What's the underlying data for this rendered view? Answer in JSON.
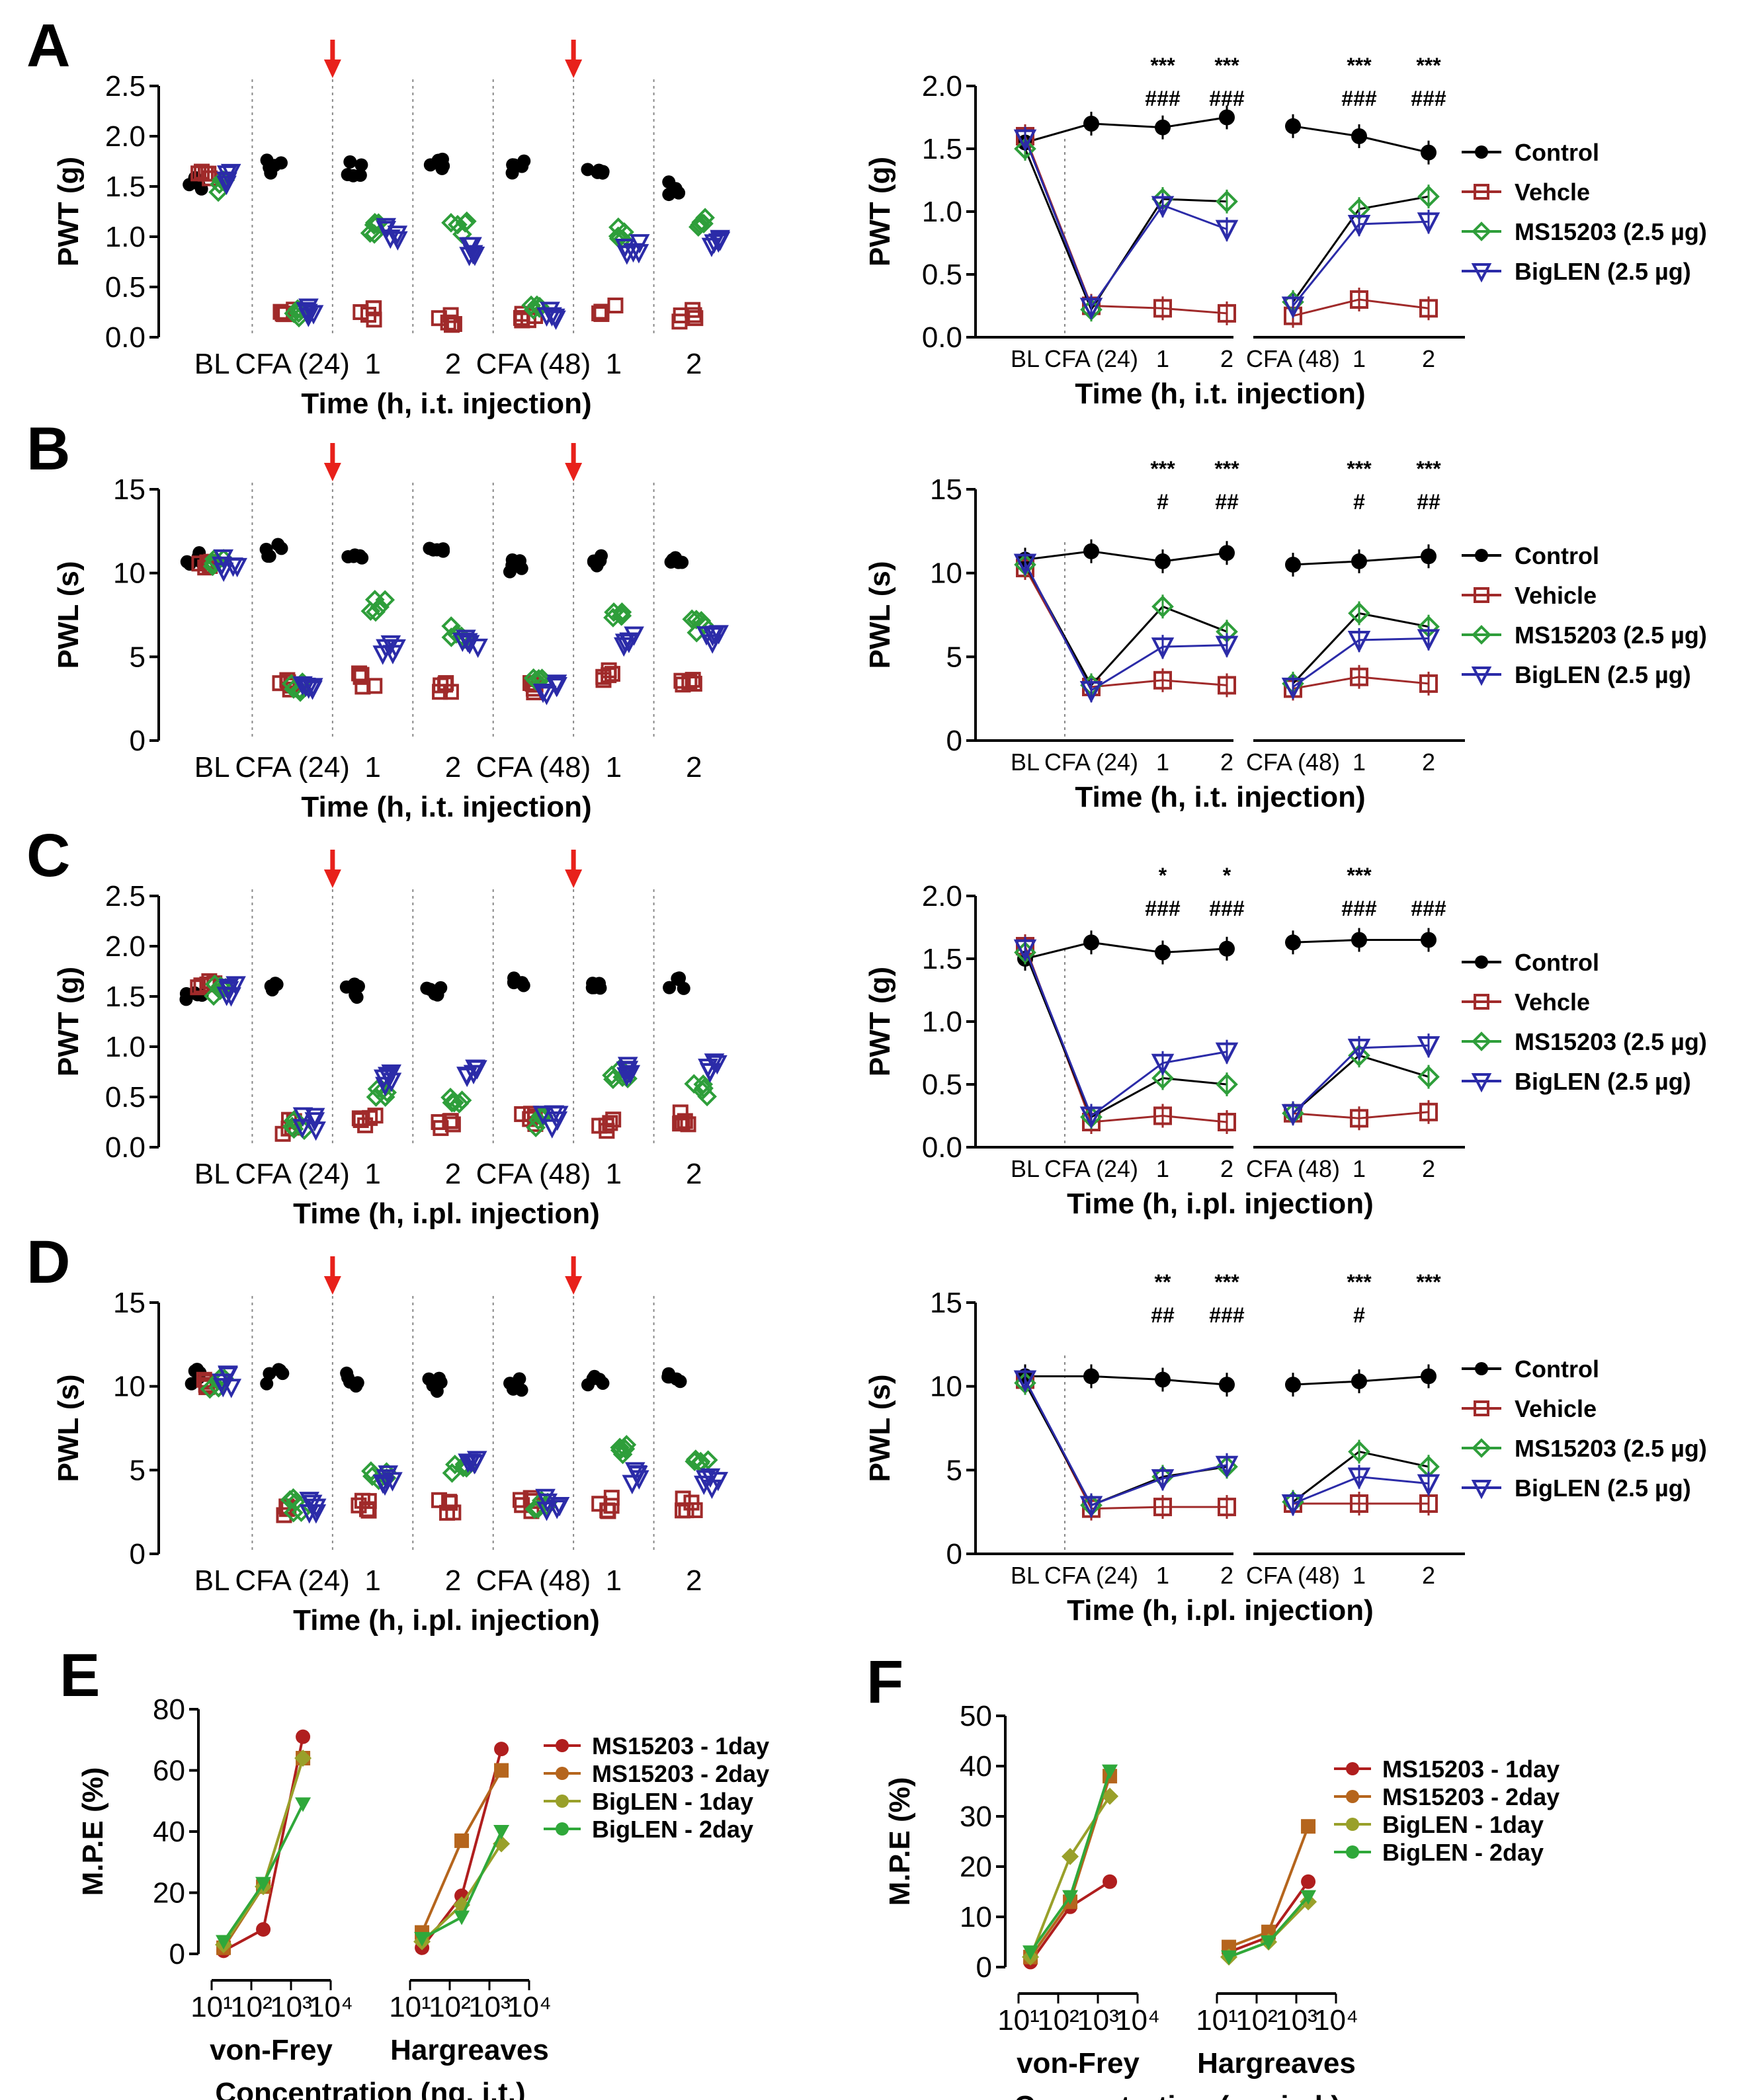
{
  "figure": {
    "colors": {
      "control": "#000000",
      "vehicle": "#a02a2a",
      "ms15203": "#2e9e3a",
      "biglen": "#2b2ba8",
      "arrow": "#e8211b",
      "ms1day": "#b01e1e",
      "ms2day": "#b5651d",
      "big1day": "#99a02a",
      "big2day": "#2fa83a"
    },
    "panels": [
      {
        "id": "A",
        "label": "A",
        "ylabel": "PWT (g)",
        "xlabel": "Time (h, i.t. injection)",
        "yticks": [
          "0.0",
          "0.5",
          "1.0",
          "1.5",
          "2.0",
          "2.5"
        ],
        "ymax": 2.5
      },
      {
        "id": "B",
        "label": "B",
        "ylabel": "PWL (s)",
        "xlabel": "Time (h, i.t. injection)",
        "yticks": [
          "0",
          "5",
          "10",
          "15"
        ],
        "ymax": 15
      },
      {
        "id": "C",
        "label": "C",
        "ylabel": "PWT (g)",
        "xlabel": "Time (h, i.pl. injection)",
        "yticks": [
          "0.0",
          "0.5",
          "1.0",
          "1.5",
          "2.0",
          "2.5"
        ],
        "ymax": 2.5
      },
      {
        "id": "D",
        "label": "D",
        "ylabel": "PWL (s)",
        "xlabel": "Time (h, i.pl. injection)",
        "yticks": [
          "0",
          "5",
          "10",
          "15"
        ],
        "ymax": 15
      }
    ],
    "timepoints": [
      "BL",
      "CFA (24)",
      "1",
      "2",
      "CFA (48)",
      "1",
      "2"
    ],
    "legend_A": [
      "Control",
      "Vehcle",
      "MS15203 (2.5 µg)",
      "BigLEN (2.5 µg)"
    ],
    "legend_B": [
      "Control",
      "Vehicle",
      "MS15203 (2.5 µg)",
      "BigLEN (2.5 µg)"
    ],
    "legend_C": [
      "Control",
      "Vehcle",
      "MS15203 (2.5 µg)",
      "BigLEN (2.5 µg)"
    ],
    "legend_D": [
      "Control",
      "Vehicle",
      "MS15203 (2.5 µg)",
      "BigLEN (2.5 µg)"
    ],
    "panel_E": {
      "label": "E",
      "ylabel": "M.P.E (%)",
      "xlabel": "Concentration (ng, i.t.)",
      "groups": [
        "von-Frey",
        "Hargreaves"
      ],
      "yticks": [
        "0",
        "20",
        "40",
        "60",
        "80"
      ],
      "ymax": 80,
      "xticks": [
        "10¹",
        "10²",
        "10³",
        "10⁴"
      ],
      "legend": [
        "MS15203 - 1day",
        "MS15203 - 2day",
        "BigLEN - 1day",
        "BigLEN - 2day"
      ]
    },
    "panel_F": {
      "label": "F",
      "ylabel": "M.P.E (%)",
      "xlabel": "Concentration (ng, i.pl.)",
      "groups": [
        "von-Frey",
        "Hargreaves"
      ],
      "yticks": [
        "0",
        "10",
        "20",
        "30",
        "40",
        "50"
      ],
      "ymax": 50,
      "xticks": [
        "10¹",
        "10²",
        "10³",
        "10⁴"
      ],
      "legend": [
        "MS15203 - 1day",
        "MS15203 - 2day",
        "BigLEN - 1day",
        "BigLEN - 2day"
      ]
    }
  },
  "chart_data": [
    {
      "type": "line",
      "panel": "A-right",
      "title": "",
      "ylabel": "PWT (g)",
      "xlabel": "Time (h, i.t. injection)",
      "ylim": [
        0,
        2.0
      ],
      "categories": [
        "BL",
        "CFA (24)",
        "1",
        "2",
        "CFA (48)",
        "1",
        "2"
      ],
      "series": [
        {
          "name": "Control",
          "values": [
            1.55,
            1.7,
            1.67,
            1.75,
            1.68,
            1.6,
            1.47
          ]
        },
        {
          "name": "Vehcle",
          "values": [
            1.6,
            0.25,
            0.23,
            0.19,
            0.17,
            0.3,
            0.23
          ]
        },
        {
          "name": "MS15203 (2.5 µg)",
          "values": [
            1.5,
            0.22,
            1.1,
            1.08,
            0.28,
            1.02,
            1.12
          ]
        },
        {
          "name": "BigLEN (2.5 µg)",
          "values": [
            1.58,
            0.24,
            1.05,
            0.86,
            0.25,
            0.9,
            0.92
          ]
        }
      ],
      "annotations": [
        {
          "at": "1",
          "star": "***",
          "hash": "###"
        },
        {
          "at": "2",
          "star": "***",
          "hash": "###"
        },
        {
          "at": "1b",
          "star": "***",
          "hash": "###"
        },
        {
          "at": "2b",
          "star": "***",
          "hash": "###"
        }
      ]
    },
    {
      "type": "line",
      "panel": "B-right",
      "title": "",
      "ylabel": "PWL (s)",
      "xlabel": "Time (h, i.t. injection)",
      "ylim": [
        0,
        15
      ],
      "categories": [
        "BL",
        "CFA (24)",
        "1",
        "2",
        "CFA (48)",
        "1",
        "2"
      ],
      "series": [
        {
          "name": "Control",
          "values": [
            10.8,
            11.3,
            10.7,
            11.2,
            10.5,
            10.7,
            11.0
          ]
        },
        {
          "name": "Vehicle",
          "values": [
            10.3,
            3.2,
            3.6,
            3.3,
            3.1,
            3.8,
            3.4
          ]
        },
        {
          "name": "MS15203 (2.5 µg)",
          "values": [
            10.5,
            3.3,
            8.0,
            6.5,
            3.4,
            7.6,
            6.8
          ]
        },
        {
          "name": "BigLEN (2.5 µg)",
          "values": [
            10.6,
            3.0,
            5.6,
            5.7,
            3.2,
            6.0,
            6.1
          ]
        }
      ],
      "annotations": [
        {
          "at": "1",
          "star": "***",
          "hash": "#"
        },
        {
          "at": "2",
          "star": "***",
          "hash": "##"
        },
        {
          "at": "1b",
          "star": "***",
          "hash": "#"
        },
        {
          "at": "2b",
          "star": "***",
          "hash": "##"
        }
      ]
    },
    {
      "type": "line",
      "panel": "C-right",
      "title": "",
      "ylabel": "PWT (g)",
      "xlabel": "Time (h, i.pl. injection)",
      "ylim": [
        0,
        2.0
      ],
      "categories": [
        "BL",
        "CFA (24)",
        "1",
        "2",
        "CFA (48)",
        "1",
        "2"
      ],
      "series": [
        {
          "name": "Control",
          "values": [
            1.5,
            1.63,
            1.55,
            1.58,
            1.63,
            1.65,
            1.65
          ]
        },
        {
          "name": "Vehcle",
          "values": [
            1.6,
            0.2,
            0.25,
            0.2,
            0.27,
            0.23,
            0.28
          ]
        },
        {
          "name": "MS15203 (2.5 µg)",
          "values": [
            1.55,
            0.24,
            0.55,
            0.5,
            0.27,
            0.73,
            0.56
          ]
        },
        {
          "name": "BigLEN (2.5 µg)",
          "values": [
            1.58,
            0.25,
            0.67,
            0.76,
            0.27,
            0.79,
            0.81
          ]
        }
      ],
      "annotations": [
        {
          "at": "1",
          "star": "*",
          "hash": "###"
        },
        {
          "at": "2",
          "star": "*",
          "hash": "###"
        },
        {
          "at": "1b",
          "star": "***",
          "hash": "###"
        },
        {
          "at": "2b",
          "star": "",
          "hash": "###"
        }
      ]
    },
    {
      "type": "line",
      "panel": "D-right",
      "title": "",
      "ylabel": "PWL (s)",
      "xlabel": "Time (h, i.pl. injection)",
      "ylim": [
        0,
        15
      ],
      "categories": [
        "BL",
        "CFA (24)",
        "1",
        "2",
        "CFA (48)",
        "1",
        "2"
      ],
      "series": [
        {
          "name": "Control",
          "values": [
            10.6,
            10.6,
            10.4,
            10.1,
            10.1,
            10.3,
            10.6
          ]
        },
        {
          "name": "Vehicle",
          "values": [
            10.4,
            2.7,
            2.8,
            2.8,
            3.0,
            3.0,
            3.0
          ]
        },
        {
          "name": "MS15203 (2.5 µg)",
          "values": [
            10.2,
            2.9,
            4.6,
            5.2,
            3.1,
            6.1,
            5.2
          ]
        },
        {
          "name": "BigLEN (2.5 µg)",
          "values": [
            10.4,
            2.9,
            4.5,
            5.3,
            3.0,
            4.6,
            4.2
          ]
        }
      ],
      "annotations": [
        {
          "at": "1",
          "star": "**",
          "hash": "##"
        },
        {
          "at": "2",
          "star": "***",
          "hash": "###"
        },
        {
          "at": "1b",
          "star": "***",
          "hash": "#"
        },
        {
          "at": "2b",
          "star": "***",
          "hash": ""
        }
      ]
    },
    {
      "type": "scatter",
      "panel": "E",
      "ylabel": "M.P.E (%)",
      "xlabel": "Concentration (ng, i.t.)",
      "ylim": [
        0,
        80
      ],
      "xscale": "log",
      "groups": [
        "von-Frey",
        "Hargreaves"
      ],
      "x": [
        20,
        200,
        2000
      ],
      "series": [
        {
          "name": "MS15203 - 1day",
          "vonFrey": [
            1,
            8,
            71
          ],
          "hargreaves": [
            2,
            19,
            67
          ]
        },
        {
          "name": "MS15203 - 2day",
          "vonFrey": [
            2,
            22,
            64
          ],
          "hargreaves": [
            7,
            37,
            60
          ]
        },
        {
          "name": "BigLEN - 1day",
          "vonFrey": [
            3,
            22,
            64
          ],
          "hargreaves": [
            4,
            16,
            36
          ]
        },
        {
          "name": "BigLEN - 2day",
          "vonFrey": [
            4,
            23,
            49
          ],
          "hargreaves": [
            5,
            12,
            40
          ]
        }
      ]
    },
    {
      "type": "scatter",
      "panel": "F",
      "ylabel": "M.P.E (%)",
      "xlabel": "Concentration (ng, i.pl.)",
      "ylim": [
        0,
        50
      ],
      "xscale": "log",
      "groups": [
        "von-Frey",
        "Hargreaves"
      ],
      "x": [
        20,
        200,
        2000
      ],
      "series": [
        {
          "name": "MS15203 - 1day",
          "vonFrey": [
            1,
            12,
            17
          ],
          "hargreaves": [
            3,
            6,
            17
          ]
        },
        {
          "name": "MS15203 - 2day",
          "vonFrey": [
            2,
            13,
            38
          ],
          "hargreaves": [
            4,
            7,
            28
          ]
        },
        {
          "name": "BigLEN - 1day",
          "vonFrey": [
            2,
            22,
            34
          ],
          "hargreaves": [
            2,
            5,
            13
          ]
        },
        {
          "name": "BigLEN - 2day",
          "vonFrey": [
            3,
            14,
            39
          ],
          "hargreaves": [
            2,
            5,
            14
          ]
        }
      ]
    }
  ]
}
